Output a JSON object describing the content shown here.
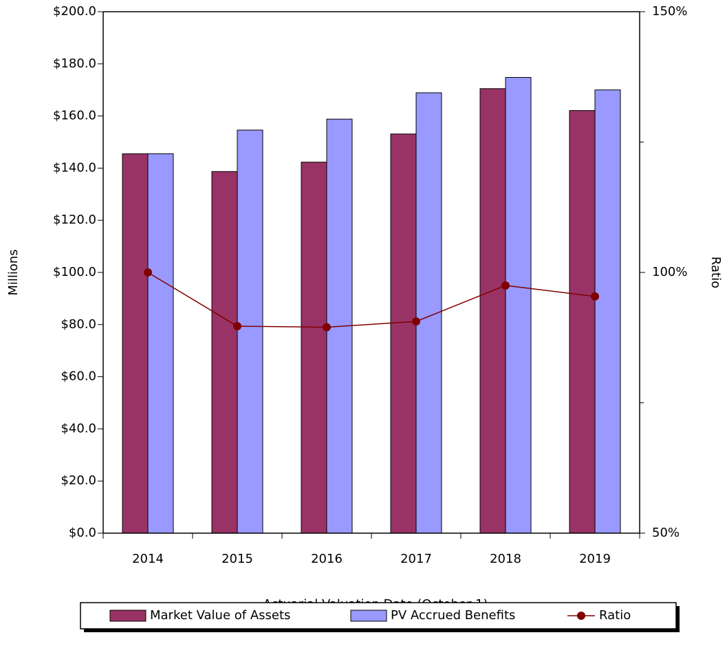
{
  "chart_data": {
    "type": "bar",
    "x_label": "Actuarial Valuation Date (October 1)",
    "y_label": "Millions",
    "y2_label": "Ratio",
    "categories": [
      "2014",
      "2015",
      "2016",
      "2017",
      "2018",
      "2019"
    ],
    "series": [
      {
        "name": "Market Value of Assets",
        "color": "#993366",
        "values": [
          145.5,
          138.7,
          142.3,
          153.1,
          170.5,
          162.1
        ]
      },
      {
        "name": "PV Accrued Benefits",
        "color": "#9999ff",
        "values": [
          145.5,
          154.6,
          158.8,
          168.9,
          174.8,
          170.0
        ]
      },
      {
        "name": "Ratio",
        "color": "#800000",
        "type": "line",
        "axis": "y2",
        "values": [
          100,
          89.7,
          89.5,
          90.6,
          97.5,
          95.4
        ]
      }
    ],
    "ylim": [
      0,
      200
    ],
    "yticks": [
      {
        "value": 0,
        "label": "$0.0"
      },
      {
        "value": 20,
        "label": "$20.0"
      },
      {
        "value": 40,
        "label": "$40.0"
      },
      {
        "value": 60,
        "label": "$60.0"
      },
      {
        "value": 80,
        "label": "$80.0"
      },
      {
        "value": 100,
        "label": "$100.0"
      },
      {
        "value": 120,
        "label": "$120.0"
      },
      {
        "value": 140,
        "label": "$140.0"
      },
      {
        "value": 160,
        "label": "$160.0"
      },
      {
        "value": 180,
        "label": "$180.0"
      },
      {
        "value": 200,
        "label": "$200.0"
      }
    ],
    "y2lim": [
      50,
      150
    ],
    "y2ticks": [
      {
        "value": 50,
        "label": "50%"
      },
      {
        "value": 100,
        "label": "100%"
      },
      {
        "value": 150,
        "label": "150%"
      }
    ],
    "y2minor_ticks": [
      75,
      125
    ],
    "legend": "bottom"
  }
}
